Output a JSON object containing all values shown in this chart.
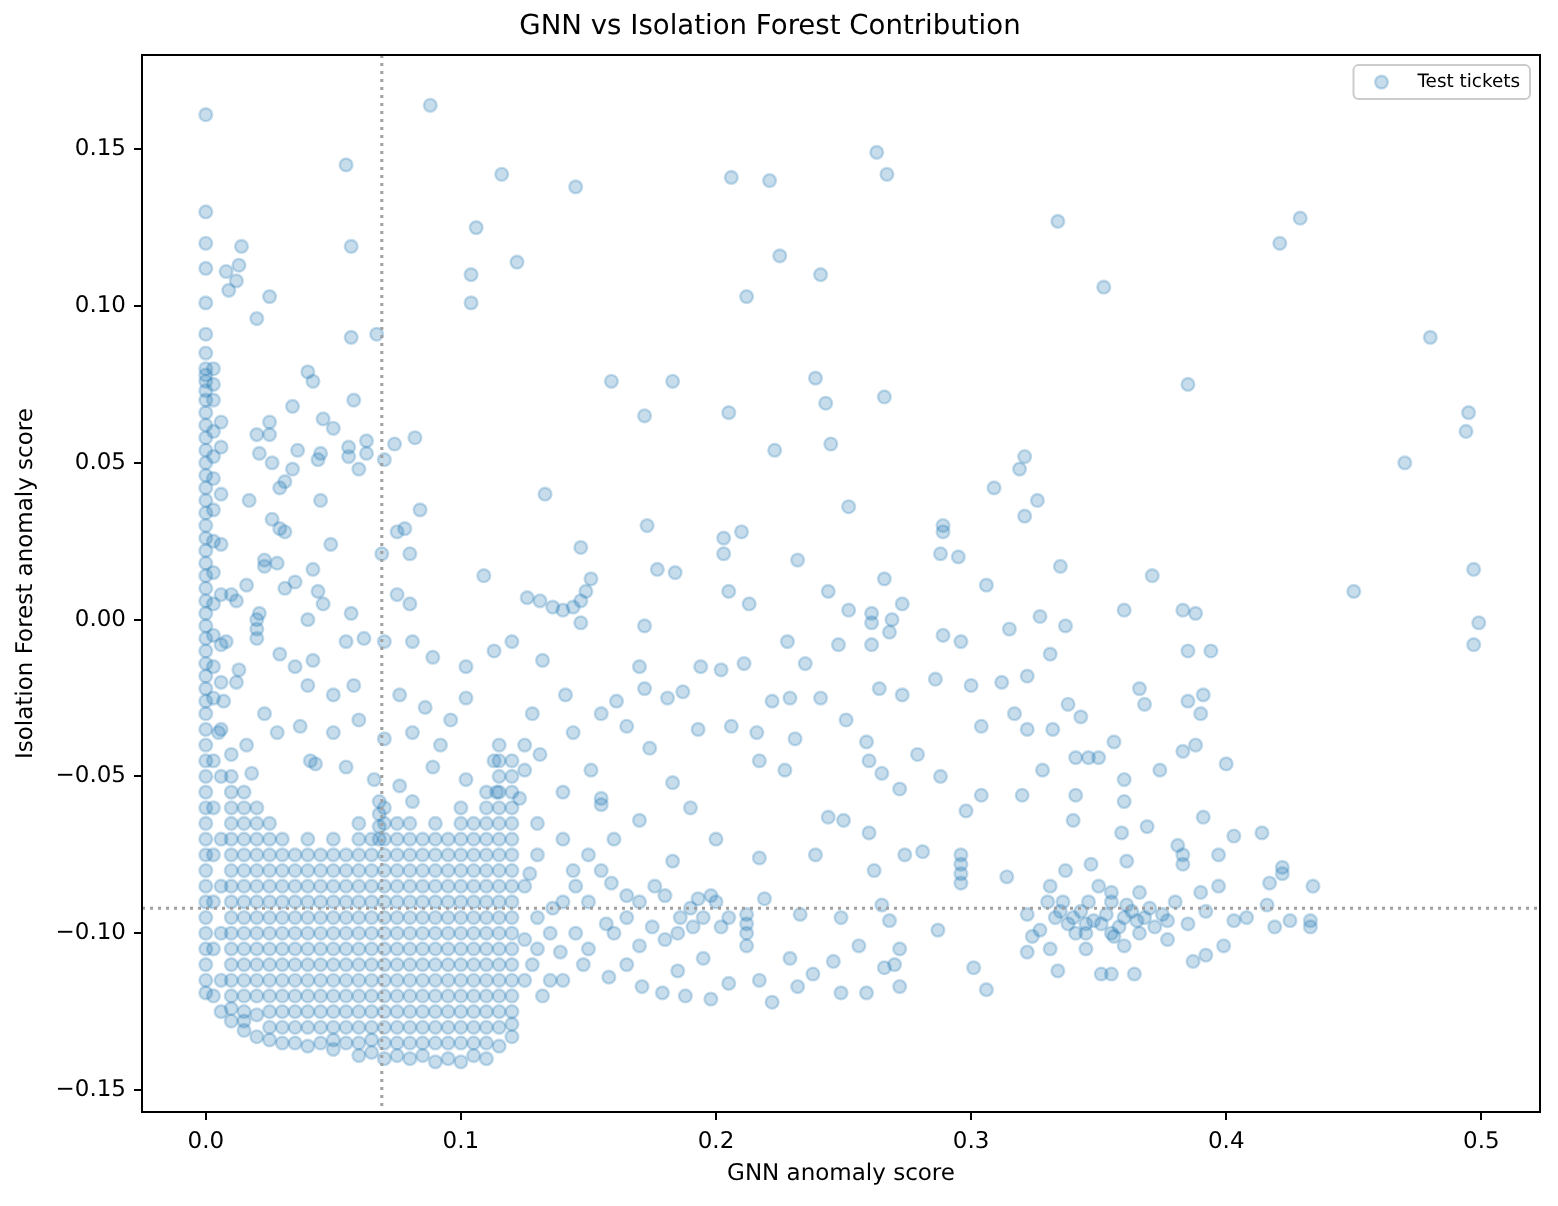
{
  "chart_data": {
    "type": "scatter",
    "title": "GNN vs Isolation Forest Contribution",
    "xlabel": "GNN anomaly score",
    "ylabel": "Isolation Forest anomaly score",
    "xlim": [
      -0.025,
      0.523
    ],
    "ylim": [
      -0.157,
      0.18
    ],
    "xticks": [
      {
        "value": 0,
        "label": "0.0"
      },
      0.1,
      0.2,
      0.3,
      0.4,
      0.5
    ],
    "yticks": [
      {
        "value": -0.15,
        "label": "−0.15"
      },
      {
        "value": -0.1,
        "label": "−0.10"
      },
      {
        "value": -0.05,
        "label": "−0.05"
      },
      {
        "value": 0,
        "label": "0.00"
      },
      0.05,
      {
        "value": 0.1,
        "label": "0.10"
      },
      0.15
    ],
    "grid": false,
    "legend": "top right",
    "marker": "circle",
    "ref_lines": [
      {
        "axis": "x",
        "value": 0.069,
        "color": "#a0a0a0",
        "line_style": "dotted"
      },
      {
        "axis": "y",
        "value": -0.092,
        "color": "#a0a0a0",
        "line_style": "dotted"
      }
    ],
    "series": [
      {
        "name": "Test tickets",
        "color": "#1f77b4",
        "x": [
          0,
          0,
          0,
          0,
          0,
          0,
          0,
          0,
          0,
          0,
          0,
          0,
          0,
          0,
          0,
          0,
          0,
          0,
          0,
          0,
          0,
          0,
          0,
          0,
          0,
          0,
          0,
          0,
          0,
          0,
          0,
          0,
          0,
          0,
          0,
          0,
          0,
          0,
          0,
          0,
          0,
          0,
          0,
          0,
          0,
          0,
          0,
          0,
          0,
          0,
          0,
          0,
          0,
          0,
          0,
          0.003,
          0.003,
          0.003,
          0.003,
          0.003,
          0.003,
          0.003,
          0.003,
          0.003,
          0.003,
          0.003,
          0.003,
          0.003,
          0.003,
          0.003,
          0.003,
          0.003,
          0.003,
          0.003,
          0.006,
          0.006,
          0.006,
          0.006,
          0.006,
          0.006,
          0.006,
          0.006,
          0.006,
          0.006,
          0.006,
          0.006,
          0.006,
          0.006,
          0.01,
          0.01,
          0.01,
          0.01,
          0.01,
          0.01,
          0.01,
          0.01,
          0.01,
          0.015,
          0.015,
          0.015,
          0.015,
          0.015,
          0.015,
          0.015,
          0.015,
          0.015,
          0.02,
          0.02,
          0.02,
          0.02,
          0.02,
          0.02,
          0.02,
          0.02,
          0.025,
          0.025,
          0.025,
          0.025,
          0.025,
          0.025,
          0.025,
          0.025,
          0.03,
          0.03,
          0.03,
          0.03,
          0.03,
          0.03,
          0.03,
          0.03,
          0.035,
          0.035,
          0.035,
          0.035,
          0.035,
          0.035,
          0.035,
          0.04,
          0.04,
          0.04,
          0.04,
          0.04,
          0.04,
          0.04,
          0.04,
          0.045,
          0.045,
          0.045,
          0.045,
          0.045,
          0.045,
          0.045,
          0.05,
          0.05,
          0.05,
          0.05,
          0.05,
          0.05,
          0.05,
          0.05,
          0.055,
          0.055,
          0.055,
          0.055,
          0.055,
          0.055,
          0.055,
          0.06,
          0.06,
          0.06,
          0.06,
          0.06,
          0.06,
          0.06,
          0.06,
          0.06,
          0.065,
          0.065,
          0.065,
          0.065,
          0.065,
          0.065,
          0.065,
          0.065,
          0.07,
          0.07,
          0.07,
          0.07,
          0.07,
          0.07,
          0.07,
          0.07,
          0.07,
          0.075,
          0.075,
          0.075,
          0.075,
          0.075,
          0.075,
          0.075,
          0.075,
          0.08,
          0.08,
          0.08,
          0.08,
          0.08,
          0.08,
          0.08,
          0.08,
          0.08,
          0.085,
          0.085,
          0.085,
          0.085,
          0.085,
          0.085,
          0.085,
          0.085,
          0.09,
          0.09,
          0.09,
          0.09,
          0.09,
          0.09,
          0.09,
          0.09,
          0.09,
          0.095,
          0.095,
          0.095,
          0.095,
          0.095,
          0.095,
          0.095,
          0.095,
          0.1,
          0.1,
          0.1,
          0.1,
          0.1,
          0.1,
          0.1,
          0.1,
          0.1,
          0.105,
          0.105,
          0.105,
          0.105,
          0.105,
          0.105,
          0.105,
          0.105,
          0.11,
          0.11,
          0.11,
          0.11,
          0.11,
          0.11,
          0.11,
          0.11,
          0.11,
          0.11,
          0.115,
          0.115,
          0.115,
          0.115,
          0.115,
          0.115,
          0.115,
          0.115,
          0.115,
          0.115,
          0.115,
          0.12,
          0.12,
          0.12,
          0.12,
          0.12,
          0.12,
          0.12,
          0.12,
          0.12,
          0.12,
          0.088,
          0.055,
          0.116,
          0.106,
          0.014,
          0.057,
          0.122,
          0.013,
          0.012,
          0.008,
          0.104,
          0.009,
          0.025,
          0.104,
          0.02,
          0.057,
          0.067,
          0.04,
          0.042,
          0.058,
          0.034,
          0.046,
          0.05,
          0.025,
          0.025,
          0.02,
          0.063,
          0.063,
          0.074,
          0.082,
          0.056,
          0.056,
          0.045,
          0.044,
          0.06,
          0.07,
          0.036,
          0.034,
          0.021,
          0.026,
          0.031,
          0.029,
          0.017,
          0.045,
          0.084,
          0.026,
          0.029,
          0.031,
          0.049,
          0.075,
          0.078,
          0.069,
          0.08,
          0.109,
          0.023,
          0.023,
          0.028,
          0.042,
          0.031,
          0.035,
          0.044,
          0.046,
          0.016,
          0.075,
          0.08,
          0.057,
          0.04,
          0.021,
          0.01,
          0.012,
          0.02,
          0.02,
          0.02,
          0.008,
          0.012,
          0.007,
          0.013,
          0.029,
          0.035,
          0.042,
          0.055,
          0.062,
          0.07,
          0.04,
          0.05,
          0.058,
          0.076,
          0.086,
          0.096,
          0.102,
          0.081,
          0.089,
          0.102,
          0.113,
          0.023,
          0.028,
          0.037,
          0.05,
          0.06,
          0.07,
          0.081,
          0.092,
          0.041,
          0.043,
          0.055,
          0.066,
          0.089,
          0.102,
          0.113,
          0.114,
          0.005,
          0.01,
          0.018,
          0.076,
          0.081,
          0.068,
          0.068,
          0.068,
          0.068,
          0.016,
          0.145,
          0.206,
          0.221,
          0.263,
          0.267,
          0.225,
          0.241,
          0.212,
          0.159,
          0.183,
          0.239,
          0.243,
          0.266,
          0.172,
          0.205,
          0.223,
          0.245,
          0.133,
          0.252,
          0.309,
          0.319,
          0.321,
          0.321,
          0.326,
          0.173,
          0.203,
          0.21,
          0.203,
          0.232,
          0.289,
          0.289,
          0.288,
          0.295,
          0.147,
          0.151,
          0.177,
          0.184,
          0.205,
          0.213,
          0.244,
          0.252,
          0.266,
          0.273,
          0.306,
          0.261,
          0.126,
          0.131,
          0.136,
          0.14,
          0.144,
          0.147,
          0.149,
          0.261,
          0.269,
          0.228,
          0.248,
          0.261,
          0.289,
          0.296,
          0.315,
          0.268,
          0.235,
          0.194,
          0.211,
          0.202,
          0.187,
          0.181,
          0.172,
          0.161,
          0.222,
          0.229,
          0.241,
          0.264,
          0.273,
          0.286,
          0.3,
          0.312,
          0.193,
          0.206,
          0.216,
          0.231,
          0.251,
          0.259,
          0.304,
          0.279,
          0.317,
          0.183,
          0.155,
          0.155,
          0.217,
          0.227,
          0.26,
          0.265,
          0.272,
          0.288,
          0.298,
          0.304,
          0.32,
          0.244,
          0.25,
          0.26,
          0.239,
          0.217,
          0.262,
          0.296,
          0.296,
          0.296,
          0.296,
          0.281,
          0.274,
          0.314,
          0.219,
          0.212,
          0.212,
          0.212,
          0.212,
          0.198,
          0.193,
          0.186,
          0.233,
          0.249,
          0.265,
          0.268,
          0.287,
          0.256,
          0.272,
          0.27,
          0.266,
          0.229,
          0.246,
          0.301,
          0.306,
          0.322,
          0.205,
          0.217,
          0.222,
          0.232,
          0.238,
          0.249,
          0.259,
          0.272,
          0.179,
          0.188,
          0.198,
          0.171,
          0.158,
          0.148,
          0.125,
          0.125,
          0.157,
          0.159,
          0.144,
          0.127,
          0.123,
          0.151,
          0.141,
          0.132,
          0.147,
          0.12,
          0.172,
          0.17,
          0.174,
          0.165,
          0.144,
          0.131,
          0.17,
          0.183,
          0.176,
          0.165,
          0.136,
          0.125,
          0.139,
          0.17,
          0.18,
          0.191,
          0.202,
          0.165,
          0.13,
          0.14,
          0.15,
          0.13,
          0.145,
          0.135,
          0.15,
          0.16,
          0.14,
          0.155,
          0.128,
          0.19,
          0.2,
          0.195,
          0.185,
          0.128,
          0.132,
          0.334,
          0.352,
          0.421,
          0.429,
          0.48,
          0.385,
          0.495,
          0.494,
          0.47,
          0.335,
          0.371,
          0.45,
          0.497,
          0.36,
          0.383,
          0.388,
          0.327,
          0.499,
          0.497,
          0.337,
          0.331,
          0.385,
          0.394,
          0.366,
          0.368,
          0.385,
          0.391,
          0.39,
          0.322,
          0.338,
          0.343,
          0.322,
          0.332,
          0.388,
          0.383,
          0.4,
          0.374,
          0.341,
          0.346,
          0.35,
          0.356,
          0.328,
          0.36,
          0.36,
          0.341,
          0.34,
          0.391,
          0.369,
          0.414,
          0.403,
          0.359,
          0.381,
          0.383,
          0.383,
          0.397,
          0.422,
          0.422,
          0.417,
          0.434,
          0.416,
          0.408,
          0.425,
          0.433,
          0.433,
          0.419,
          0.377,
          0.399,
          0.403,
          0.334,
          0.351,
          0.355,
          0.364,
          0.387,
          0.392,
          0.377,
          0.36,
          0.324,
          0.331,
          0.34,
          0.345,
          0.335,
          0.355,
          0.366,
          0.39,
          0.397,
          0.322,
          0.331,
          0.347,
          0.361,
          0.337,
          0.35,
          0.36,
          0.37,
          0.38,
          0.355,
          0.345,
          0.372,
          0.327,
          0.385,
          0.392,
          0.01,
          0.01,
          0.01,
          0.01,
          0.01,
          0.01,
          0.01,
          0.01,
          0.015,
          0.015,
          0.015,
          0.015,
          0.015,
          0.015,
          0.015,
          0.015,
          0.02,
          0.02,
          0.02,
          0.02,
          0.02,
          0.02,
          0.02,
          0.025,
          0.025,
          0.025,
          0.025,
          0.025,
          0.025,
          0.025,
          0.03,
          0.03,
          0.03,
          0.03,
          0.03,
          0.03,
          0.035,
          0.035,
          0.035,
          0.035,
          0.035,
          0.035,
          0.04,
          0.04,
          0.04,
          0.04,
          0.04,
          0.04,
          0.045,
          0.045,
          0.045,
          0.045,
          0.045,
          0.045,
          0.05,
          0.05,
          0.05,
          0.05,
          0.05,
          0.05,
          0.05,
          0.055,
          0.055,
          0.055,
          0.055,
          0.055,
          0.055,
          0.06,
          0.06,
          0.06,
          0.06,
          0.06,
          0.06,
          0.06,
          0.065,
          0.065,
          0.065,
          0.065,
          0.065,
          0.065,
          0.065,
          0.07,
          0.07,
          0.07,
          0.07,
          0.07,
          0.07,
          0.07,
          0.07,
          0.075,
          0.075,
          0.075,
          0.075,
          0.075,
          0.075,
          0.075,
          0.075,
          0.08,
          0.08,
          0.08,
          0.08,
          0.08,
          0.08,
          0.08,
          0.085,
          0.085,
          0.085,
          0.085,
          0.085,
          0.085,
          0.085,
          0.09,
          0.09,
          0.09,
          0.09,
          0.09,
          0.09,
          0.09,
          0.095,
          0.095,
          0.095,
          0.095,
          0.095,
          0.095,
          0.095,
          0.1,
          0.1,
          0.1,
          0.1,
          0.1,
          0.1,
          0.1,
          0.1,
          0.105,
          0.105,
          0.105,
          0.105,
          0.105,
          0.105,
          0.105,
          0.105,
          0.11,
          0.11,
          0.11,
          0.11,
          0.11,
          0.11,
          0.11,
          0.11,
          0.115,
          0.115,
          0.115,
          0.115,
          0.115,
          0.115,
          0.115,
          0.115,
          0.115,
          0.12,
          0.12,
          0.12,
          0.12,
          0.12,
          0.12,
          0.12,
          0.12,
          0.12,
          0.125,
          0.13,
          0.135,
          0.14,
          0.145,
          0.15,
          0.155,
          0.16,
          0.165,
          0.17,
          0.175,
          0.18,
          0.185,
          0.19,
          0.195,
          0.2,
          0.205,
          0.13,
          0.14,
          0.125,
          0.333,
          0.338,
          0.343,
          0.348,
          0.353,
          0.358,
          0.363,
          0.368,
          0.336,
          0.341,
          0.346,
          0.351,
          0.356,
          0.361,
          0.366,
          0.33,
          0.345,
          0.355,
          0.365,
          0.375
        ],
        "values": [
          0.161,
          0.13,
          0.12,
          0.112,
          0.101,
          0.091,
          0.085,
          0.08,
          0.078,
          0.076,
          0.073,
          0.07,
          0.066,
          0.062,
          0.058,
          0.054,
          0.05,
          0.046,
          0.042,
          0.038,
          0.034,
          0.03,
          0.026,
          0.022,
          0.018,
          0.014,
          0.01,
          0.006,
          0.002,
          -0.002,
          -0.006,
          -0.01,
          -0.014,
          -0.018,
          -0.022,
          -0.026,
          -0.03,
          -0.035,
          -0.04,
          -0.045,
          -0.05,
          -0.055,
          -0.06,
          -0.065,
          -0.07,
          -0.075,
          -0.08,
          -0.085,
          -0.09,
          -0.095,
          -0.1,
          -0.105,
          -0.11,
          -0.115,
          -0.119,
          0.08,
          0.075,
          0.07,
          0.06,
          0.052,
          0.045,
          0.035,
          0.025,
          0.015,
          0.005,
          -0.005,
          -0.015,
          -0.025,
          -0.045,
          -0.06,
          -0.075,
          -0.09,
          -0.105,
          -0.12,
          0.063,
          0.055,
          0.04,
          0.024,
          0.008,
          -0.008,
          -0.02,
          -0.035,
          -0.05,
          -0.07,
          -0.085,
          -0.1,
          -0.115,
          -0.125,
          -0.05,
          -0.06,
          -0.07,
          -0.08,
          -0.09,
          -0.1,
          -0.11,
          -0.12,
          -0.128,
          -0.055,
          -0.065,
          -0.075,
          -0.085,
          -0.095,
          -0.105,
          -0.115,
          -0.125,
          -0.131,
          -0.06,
          -0.07,
          -0.08,
          -0.09,
          -0.1,
          -0.11,
          -0.12,
          -0.133,
          -0.065,
          -0.075,
          -0.085,
          -0.095,
          -0.105,
          -0.115,
          -0.125,
          -0.134,
          -0.07,
          -0.08,
          -0.09,
          -0.1,
          -0.11,
          -0.12,
          -0.13,
          -0.135,
          -0.075,
          -0.085,
          -0.095,
          -0.105,
          -0.115,
          -0.125,
          -0.135,
          -0.07,
          -0.08,
          -0.09,
          -0.1,
          -0.11,
          -0.12,
          -0.13,
          -0.136,
          -0.075,
          -0.085,
          -0.095,
          -0.105,
          -0.115,
          -0.125,
          -0.135,
          -0.07,
          -0.08,
          -0.09,
          -0.1,
          -0.11,
          -0.12,
          -0.13,
          -0.137,
          -0.075,
          -0.085,
          -0.095,
          -0.105,
          -0.115,
          -0.125,
          -0.135,
          -0.065,
          -0.075,
          -0.085,
          -0.095,
          -0.105,
          -0.115,
          -0.125,
          -0.135,
          -0.139,
          -0.07,
          -0.08,
          -0.09,
          -0.1,
          -0.11,
          -0.12,
          -0.13,
          -0.138,
          -0.06,
          -0.07,
          -0.08,
          -0.09,
          -0.1,
          -0.11,
          -0.12,
          -0.13,
          -0.14,
          -0.065,
          -0.075,
          -0.085,
          -0.095,
          -0.105,
          -0.115,
          -0.125,
          -0.135,
          -0.065,
          -0.075,
          -0.085,
          -0.095,
          -0.105,
          -0.115,
          -0.125,
          -0.135,
          -0.14,
          -0.07,
          -0.08,
          -0.09,
          -0.1,
          -0.11,
          -0.12,
          -0.13,
          -0.139,
          -0.065,
          -0.075,
          -0.085,
          -0.095,
          -0.105,
          -0.115,
          -0.125,
          -0.135,
          -0.141,
          -0.07,
          -0.08,
          -0.09,
          -0.1,
          -0.11,
          -0.12,
          -0.13,
          -0.14,
          -0.06,
          -0.07,
          -0.08,
          -0.09,
          -0.1,
          -0.11,
          -0.12,
          -0.13,
          -0.141,
          -0.065,
          -0.075,
          -0.085,
          -0.095,
          -0.105,
          -0.115,
          -0.125,
          -0.135,
          -0.055,
          -0.065,
          -0.075,
          -0.085,
          -0.095,
          -0.105,
          -0.115,
          -0.125,
          -0.135,
          -0.14,
          -0.04,
          -0.05,
          -0.06,
          -0.07,
          -0.08,
          -0.09,
          -0.1,
          -0.11,
          -0.12,
          -0.13,
          -0.136,
          -0.045,
          -0.055,
          -0.065,
          -0.075,
          -0.085,
          -0.095,
          -0.105,
          -0.115,
          -0.125,
          -0.133,
          0.164,
          0.145,
          0.142,
          0.125,
          0.119,
          0.119,
          0.114,
          0.113,
          0.108,
          0.111,
          0.11,
          0.105,
          0.103,
          0.101,
          0.096,
          0.09,
          0.091,
          0.079,
          0.076,
          0.07,
          0.068,
          0.064,
          0.061,
          0.063,
          0.059,
          0.059,
          0.053,
          0.057,
          0.056,
          0.058,
          0.055,
          0.052,
          0.053,
          0.051,
          0.048,
          0.051,
          0.054,
          0.048,
          0.053,
          0.05,
          0.044,
          0.042,
          0.038,
          0.038,
          0.035,
          0.032,
          0.029,
          0.028,
          0.024,
          0.028,
          0.029,
          0.021,
          0.021,
          0.014,
          0.019,
          0.017,
          0.018,
          0.016,
          0.01,
          0.012,
          0.009,
          0.005,
          0.011,
          0.008,
          0.005,
          0.002,
          0,
          0.002,
          0.008,
          0.006,
          0,
          -0.003,
          -0.006,
          -0.007,
          -0.02,
          -0.026,
          -0.016,
          -0.011,
          -0.015,
          -0.013,
          -0.007,
          -0.006,
          -0.007,
          -0.021,
          -0.024,
          -0.021,
          -0.024,
          -0.028,
          -0.032,
          -0.025,
          -0.007,
          -0.012,
          -0.015,
          -0.01,
          -0.03,
          -0.036,
          -0.034,
          -0.036,
          -0.032,
          -0.038,
          -0.036,
          -0.04,
          -0.045,
          -0.046,
          -0.047,
          -0.051,
          -0.047,
          -0.051,
          -0.045,
          -0.055,
          -0.036,
          -0.043,
          -0.049,
          -0.053,
          -0.058,
          -0.058,
          -0.062,
          -0.066,
          -0.07,
          -0.04,
          0.138,
          0.141,
          0.14,
          0.149,
          0.142,
          0.116,
          0.11,
          0.103,
          0.076,
          0.076,
          0.077,
          0.069,
          0.071,
          0.065,
          0.066,
          0.054,
          0.056,
          0.04,
          0.036,
          0.042,
          0.048,
          0.052,
          0.033,
          0.038,
          0.03,
          0.026,
          0.028,
          0.021,
          0.019,
          0.03,
          0.028,
          0.021,
          0.02,
          0.023,
          0.013,
          0.016,
          0.015,
          0.009,
          0.005,
          0.009,
          0.003,
          0.013,
          0.005,
          0.011,
          0.002,
          0.007,
          0.006,
          0.004,
          0.003,
          0.004,
          0.006,
          0.009,
          -0.001,
          0,
          -0.007,
          -0.008,
          -0.008,
          -0.005,
          -0.007,
          -0.003,
          -0.004,
          -0.014,
          -0.015,
          -0.014,
          -0.016,
          -0.023,
          -0.025,
          -0.022,
          -0.026,
          -0.026,
          -0.025,
          -0.025,
          -0.022,
          -0.024,
          -0.019,
          -0.021,
          -0.02,
          -0.035,
          -0.034,
          -0.036,
          -0.038,
          -0.032,
          -0.039,
          -0.034,
          -0.043,
          -0.03,
          -0.052,
          -0.057,
          -0.059,
          -0.045,
          -0.048,
          -0.045,
          -0.049,
          -0.054,
          -0.05,
          -0.061,
          -0.056,
          -0.056,
          -0.063,
          -0.064,
          -0.068,
          -0.075,
          -0.076,
          -0.08,
          -0.075,
          -0.078,
          -0.081,
          -0.084,
          -0.074,
          -0.075,
          -0.082,
          -0.089,
          -0.094,
          -0.097,
          -0.1,
          -0.104,
          -0.088,
          -0.089,
          -0.095,
          -0.094,
          -0.095,
          -0.091,
          -0.096,
          -0.099,
          -0.104,
          -0.105,
          -0.11,
          -0.111,
          -0.108,
          -0.109,
          -0.111,
          -0.118,
          -0.106,
          -0.116,
          -0.115,
          -0.122,
          -0.117,
          -0.113,
          -0.119,
          -0.119,
          -0.117,
          -0.119,
          -0.12,
          -0.121,
          -0.117,
          -0.114,
          -0.11,
          -0.04,
          -0.048,
          -0.097,
          -0.084,
          -0.08,
          -0.081,
          -0.057,
          -0.048,
          -0.024,
          -0.013,
          -0.001,
          -0.007,
          -0.002,
          -0.015,
          -0.041,
          -0.034,
          -0.036,
          -0.043,
          -0.064,
          -0.077,
          -0.085,
          -0.088,
          -0.092,
          -0.102,
          -0.106,
          -0.104,
          -0.102,
          -0.098,
          -0.098,
          -0.11,
          -0.065,
          -0.07,
          -0.075,
          -0.095,
          -0.1,
          -0.115,
          -0.09,
          -0.07,
          -0.055,
          -0.03,
          -0.03,
          -0.06,
          -0.07,
          -0.108,
          -0.112,
          -0.11,
          -0.12,
          0.127,
          0.106,
          0.12,
          0.128,
          0.09,
          0.075,
          0.066,
          0.06,
          0.05,
          0.017,
          0.014,
          0.009,
          0.016,
          0.003,
          0.003,
          0.002,
          0.001,
          -0.001,
          -0.008,
          -0.002,
          -0.011,
          -0.01,
          -0.01,
          -0.022,
          -0.027,
          -0.026,
          -0.024,
          -0.03,
          -0.018,
          -0.027,
          -0.031,
          -0.035,
          -0.035,
          -0.04,
          -0.042,
          -0.046,
          -0.048,
          -0.044,
          -0.044,
          -0.044,
          -0.039,
          -0.048,
          -0.051,
          -0.058,
          -0.056,
          -0.064,
          -0.063,
          -0.066,
          -0.068,
          -0.069,
          -0.068,
          -0.072,
          -0.075,
          -0.078,
          -0.075,
          -0.079,
          -0.081,
          -0.084,
          -0.085,
          -0.091,
          -0.095,
          -0.096,
          -0.096,
          -0.098,
          -0.098,
          -0.096,
          -0.104,
          -0.096,
          -0.112,
          -0.113,
          -0.113,
          -0.113,
          -0.109,
          -0.107,
          -0.102,
          -0.104,
          -0.101,
          -0.105,
          -0.095,
          -0.097,
          -0.093,
          -0.09,
          -0.087,
          -0.087,
          -0.085,
          -0.094,
          -0.085,
          -0.078,
          -0.077,
          -0.08,
          -0.085,
          -0.095,
          -0.092,
          -0.09,
          -0.1,
          -0.105,
          -0.098,
          -0.099,
          -0.097,
          -0.093,
          -0.055,
          -0.065,
          -0.075,
          -0.085,
          -0.095,
          -0.105,
          -0.115,
          -0.124,
          -0.06,
          -0.07,
          -0.08,
          -0.09,
          -0.1,
          -0.11,
          -0.12,
          -0.128,
          -0.065,
          -0.075,
          -0.085,
          -0.095,
          -0.105,
          -0.115,
          -0.126,
          -0.07,
          -0.08,
          -0.09,
          -0.1,
          -0.11,
          -0.12,
          -0.13,
          -0.075,
          -0.085,
          -0.095,
          -0.105,
          -0.115,
          -0.125,
          -0.08,
          -0.09,
          -0.1,
          -0.11,
          -0.12,
          -0.13,
          -0.075,
          -0.085,
          -0.095,
          -0.105,
          -0.115,
          -0.125,
          -0.08,
          -0.09,
          -0.1,
          -0.11,
          -0.12,
          -0.13,
          -0.075,
          -0.085,
          -0.095,
          -0.105,
          -0.115,
          -0.125,
          -0.134,
          -0.08,
          -0.09,
          -0.1,
          -0.11,
          -0.12,
          -0.13,
          -0.07,
          -0.08,
          -0.09,
          -0.1,
          -0.11,
          -0.12,
          -0.13,
          -0.075,
          -0.085,
          -0.095,
          -0.105,
          -0.115,
          -0.125,
          -0.134,
          -0.065,
          -0.075,
          -0.085,
          -0.095,
          -0.105,
          -0.115,
          -0.125,
          -0.135,
          -0.07,
          -0.08,
          -0.09,
          -0.1,
          -0.11,
          -0.12,
          -0.13,
          -0.139,
          -0.07,
          -0.08,
          -0.09,
          -0.1,
          -0.11,
          -0.12,
          -0.13,
          -0.075,
          -0.085,
          -0.095,
          -0.105,
          -0.115,
          -0.125,
          -0.135,
          -0.07,
          -0.08,
          -0.09,
          -0.1,
          -0.11,
          -0.12,
          -0.13,
          -0.075,
          -0.085,
          -0.095,
          -0.105,
          -0.115,
          -0.125,
          -0.135,
          -0.065,
          -0.075,
          -0.085,
          -0.095,
          -0.105,
          -0.115,
          -0.125,
          -0.135,
          -0.07,
          -0.08,
          -0.09,
          -0.1,
          -0.11,
          -0.12,
          -0.13,
          -0.139,
          -0.06,
          -0.07,
          -0.08,
          -0.09,
          -0.1,
          -0.11,
          -0.12,
          -0.13,
          -0.045,
          -0.055,
          -0.065,
          -0.075,
          -0.085,
          -0.095,
          -0.105,
          -0.115,
          -0.125,
          -0.05,
          -0.06,
          -0.07,
          -0.08,
          -0.09,
          -0.1,
          -0.11,
          -0.12,
          -0.129,
          -0.085,
          -0.075,
          -0.1,
          -0.09,
          -0.085,
          -0.105,
          -0.08,
          -0.1,
          -0.095,
          -0.09,
          -0.098,
          -0.088,
          -0.1,
          -0.092,
          -0.095,
          -0.09,
          -0.095,
          -0.105,
          -0.115,
          -0.115,
          -0.095,
          -0.097,
          -0.093,
          -0.096,
          -0.094,
          -0.098,
          -0.093,
          -0.095,
          -0.09,
          -0.1,
          -0.09,
          -0.097,
          -0.101,
          -0.091,
          -0.1,
          -0.09,
          -0.1,
          -0.087,
          -0.096,
          -0.094
        ]
      }
    ]
  }
}
